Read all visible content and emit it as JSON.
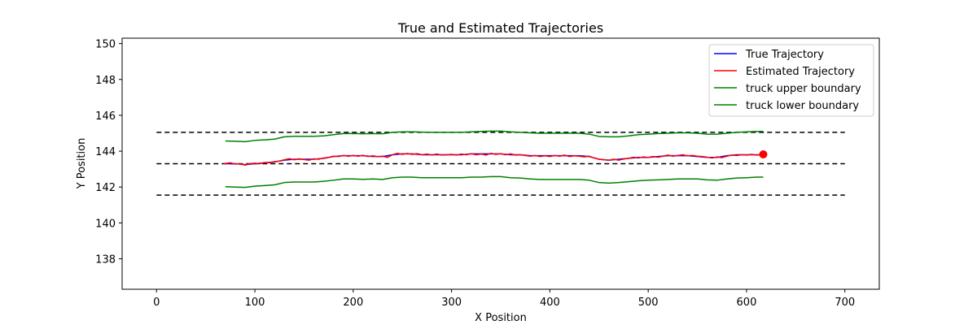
{
  "chart_data": {
    "type": "line",
    "title": "True and Estimated Trajectories",
    "xlabel": "X Position",
    "ylabel": "Y Position",
    "xlim": [
      -35,
      735
    ],
    "ylim": [
      136.3,
      150.3
    ],
    "xticks": [
      0,
      100,
      200,
      300,
      400,
      500,
      600,
      700
    ],
    "yticks": [
      138,
      140,
      142,
      144,
      146,
      148,
      150
    ],
    "grid": false,
    "legend_position": "upper right",
    "series": [
      {
        "name": "True Trajectory",
        "color": "#0000ff",
        "x": [
          68,
          80,
          90,
          100,
          110,
          120,
          130,
          140,
          150,
          160,
          170,
          180,
          190,
          200,
          210,
          220,
          230,
          240,
          250,
          260,
          270,
          280,
          290,
          300,
          310,
          320,
          330,
          340,
          350,
          360,
          370,
          380,
          390,
          400,
          410,
          420,
          430,
          440,
          450,
          460,
          470,
          480,
          490,
          500,
          510,
          520,
          530,
          540,
          550,
          560,
          570,
          580,
          590,
          600,
          610,
          617
        ],
        "y": [
          143.3,
          143.3,
          143.25,
          143.3,
          143.35,
          143.4,
          143.5,
          143.55,
          143.55,
          143.55,
          143.6,
          143.7,
          143.75,
          143.75,
          143.75,
          143.7,
          143.7,
          143.8,
          143.85,
          143.85,
          143.8,
          143.8,
          143.8,
          143.8,
          143.8,
          143.85,
          143.85,
          143.85,
          143.85,
          143.8,
          143.8,
          143.75,
          143.75,
          143.75,
          143.75,
          143.75,
          143.75,
          143.7,
          143.55,
          143.5,
          143.55,
          143.6,
          143.65,
          143.65,
          143.7,
          143.75,
          143.75,
          143.75,
          143.7,
          143.65,
          143.65,
          143.75,
          143.8,
          143.8,
          143.8,
          143.8
        ]
      },
      {
        "name": "Estimated Trajectory",
        "color": "#ff0000",
        "x": [
          68,
          75,
          80,
          85,
          90,
          95,
          100,
          105,
          110,
          115,
          120,
          125,
          130,
          135,
          140,
          145,
          150,
          155,
          160,
          165,
          170,
          175,
          180,
          185,
          190,
          195,
          200,
          205,
          210,
          215,
          220,
          225,
          230,
          235,
          240,
          245,
          250,
          255,
          260,
          265,
          270,
          275,
          280,
          285,
          290,
          295,
          300,
          305,
          310,
          315,
          320,
          325,
          330,
          335,
          340,
          345,
          350,
          355,
          360,
          365,
          370,
          375,
          380,
          385,
          390,
          395,
          400,
          405,
          410,
          415,
          420,
          425,
          430,
          435,
          440,
          445,
          450,
          455,
          460,
          465,
          470,
          475,
          480,
          485,
          490,
          495,
          500,
          505,
          510,
          515,
          520,
          525,
          530,
          535,
          540,
          545,
          550,
          555,
          560,
          565,
          570,
          575,
          580,
          585,
          590,
          595,
          600,
          605,
          610,
          617
        ],
        "y": [
          143.3,
          143.35,
          143.28,
          143.3,
          143.22,
          143.3,
          143.33,
          143.3,
          143.37,
          143.35,
          143.42,
          143.45,
          143.52,
          143.58,
          143.52,
          143.57,
          143.53,
          143.5,
          143.57,
          143.55,
          143.62,
          143.65,
          143.72,
          143.7,
          143.76,
          143.72,
          143.76,
          143.72,
          143.77,
          143.7,
          143.74,
          143.69,
          143.72,
          143.65,
          143.8,
          143.88,
          143.82,
          143.87,
          143.82,
          143.86,
          143.8,
          143.84,
          143.78,
          143.84,
          143.78,
          143.8,
          143.82,
          143.78,
          143.84,
          143.8,
          143.86,
          143.8,
          143.84,
          143.78,
          143.88,
          143.82,
          143.86,
          143.8,
          143.85,
          143.78,
          143.8,
          143.76,
          143.72,
          143.76,
          143.7,
          143.74,
          143.7,
          143.76,
          143.72,
          143.78,
          143.7,
          143.74,
          143.72,
          143.68,
          143.72,
          143.62,
          143.55,
          143.52,
          143.5,
          143.55,
          143.5,
          143.56,
          143.6,
          143.66,
          143.62,
          143.68,
          143.65,
          143.7,
          143.66,
          143.72,
          143.78,
          143.72,
          143.76,
          143.8,
          143.74,
          143.76,
          143.72,
          143.7,
          143.66,
          143.62,
          143.68,
          143.64,
          143.72,
          143.78,
          143.76,
          143.8,
          143.78,
          143.82,
          143.78,
          143.8
        ]
      },
      {
        "name": "truck upper boundary",
        "color": "#008000",
        "x": [
          70,
          80,
          90,
          100,
          110,
          120,
          130,
          140,
          150,
          160,
          170,
          180,
          190,
          200,
          210,
          220,
          230,
          240,
          250,
          260,
          270,
          280,
          290,
          300,
          310,
          320,
          330,
          340,
          350,
          360,
          370,
          380,
          390,
          400,
          410,
          420,
          430,
          440,
          450,
          460,
          470,
          480,
          490,
          500,
          510,
          520,
          530,
          540,
          550,
          560,
          570,
          580,
          590,
          600,
          610,
          617
        ],
        "y": [
          144.57,
          144.55,
          144.53,
          144.6,
          144.63,
          144.67,
          144.8,
          144.83,
          144.83,
          144.83,
          144.85,
          144.92,
          144.98,
          144.98,
          144.97,
          144.98,
          144.97,
          145.05,
          145.08,
          145.08,
          145.06,
          145.05,
          145.05,
          145.05,
          145.05,
          145.08,
          145.1,
          145.12,
          145.12,
          145.08,
          145.05,
          145.02,
          145.0,
          145.0,
          145.0,
          145.0,
          145.0,
          144.95,
          144.82,
          144.8,
          144.8,
          144.85,
          144.92,
          144.95,
          144.98,
          145.0,
          145.02,
          145.02,
          145.0,
          144.95,
          144.95,
          145.0,
          145.05,
          145.08,
          145.1,
          145.1
        ]
      },
      {
        "name": "truck lower boundary",
        "color": "#008000",
        "x": [
          70,
          80,
          90,
          100,
          110,
          120,
          130,
          140,
          150,
          160,
          170,
          180,
          190,
          200,
          210,
          220,
          230,
          240,
          250,
          260,
          270,
          280,
          290,
          300,
          310,
          320,
          330,
          340,
          350,
          360,
          370,
          380,
          390,
          400,
          410,
          420,
          430,
          440,
          450,
          460,
          470,
          480,
          490,
          500,
          510,
          520,
          530,
          540,
          550,
          560,
          570,
          580,
          590,
          600,
          610,
          617
        ],
        "y": [
          142.02,
          142.0,
          141.98,
          142.05,
          142.08,
          142.12,
          142.25,
          142.28,
          142.28,
          142.28,
          142.32,
          142.38,
          142.45,
          142.45,
          142.43,
          142.45,
          142.42,
          142.52,
          142.55,
          142.55,
          142.52,
          142.52,
          142.52,
          142.52,
          142.52,
          142.55,
          142.55,
          142.58,
          142.58,
          142.52,
          142.5,
          142.45,
          142.42,
          142.42,
          142.42,
          142.42,
          142.42,
          142.38,
          142.25,
          142.22,
          142.25,
          142.3,
          142.35,
          142.38,
          142.4,
          142.42,
          142.45,
          142.45,
          142.45,
          142.4,
          142.38,
          142.45,
          142.5,
          142.52,
          142.55,
          142.55
        ]
      }
    ],
    "reference_lines": [
      {
        "y": 145.05,
        "x_range": [
          0,
          700
        ],
        "style": "dashed",
        "color": "#000000"
      },
      {
        "y": 143.3,
        "x_range": [
          0,
          700
        ],
        "style": "dashed",
        "color": "#000000"
      },
      {
        "y": 141.55,
        "x_range": [
          0,
          700
        ],
        "style": "dashed",
        "color": "#000000"
      }
    ],
    "marker": {
      "x": 617,
      "y": 143.82,
      "color": "#ff0000",
      "shape": "circle"
    }
  }
}
